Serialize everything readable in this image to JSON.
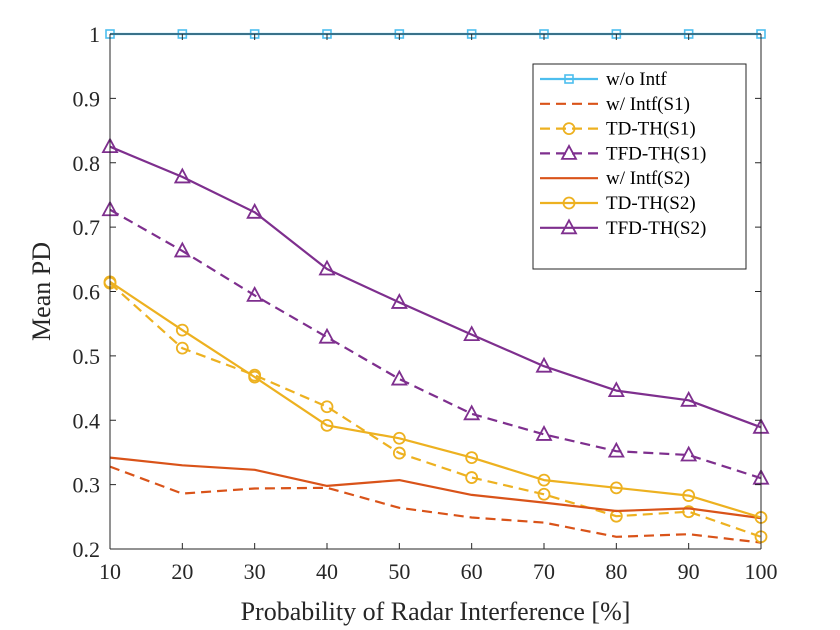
{
  "chart_data": {
    "type": "line",
    "title": "",
    "xlabel": "Probability of Radar Interference [%]",
    "ylabel": "Mean PD",
    "x": [
      10,
      20,
      30,
      40,
      50,
      60,
      70,
      80,
      90,
      100
    ],
    "xlim": [
      10,
      100
    ],
    "ylim": [
      0.2,
      1.0
    ],
    "xticks": [
      "10",
      "20",
      "30",
      "40",
      "50",
      "60",
      "70",
      "80",
      "90",
      "100"
    ],
    "yticks": [
      "0.2",
      "0.3",
      "0.4",
      "0.5",
      "0.6",
      "0.7",
      "0.8",
      "0.9",
      "1"
    ],
    "grid": false,
    "legend_position": "top-right",
    "series": [
      {
        "name": "w/o Intf",
        "color": "#4DBEEE",
        "dash": "solid",
        "marker": "square",
        "values": [
          1.0,
          1.0,
          1.0,
          1.0,
          1.0,
          1.0,
          1.0,
          1.0,
          1.0,
          1.0
        ]
      },
      {
        "name": "w/ Intf(S1)",
        "color": "#D95319",
        "dash": "dashed",
        "marker": "none",
        "values": [
          0.328,
          0.286,
          0.294,
          0.295,
          0.264,
          0.249,
          0.241,
          0.219,
          0.223,
          0.21
        ]
      },
      {
        "name": "TD-TH(S1)",
        "color": "#EDB120",
        "dash": "dashed",
        "marker": "circle",
        "values": [
          0.613,
          0.512,
          0.47,
          0.421,
          0.349,
          0.311,
          0.285,
          0.251,
          0.258,
          0.219
        ]
      },
      {
        "name": "TFD-TH(S1)",
        "color": "#7E2F8E",
        "dash": "dashed",
        "marker": "triangle",
        "values": [
          0.727,
          0.663,
          0.594,
          0.529,
          0.464,
          0.41,
          0.378,
          0.352,
          0.346,
          0.31
        ]
      },
      {
        "name": "w/ Intf(S2)",
        "color": "#D95319",
        "dash": "solid",
        "marker": "none",
        "values": [
          0.342,
          0.33,
          0.323,
          0.298,
          0.307,
          0.284,
          0.272,
          0.259,
          0.263,
          0.248
        ]
      },
      {
        "name": "TD-TH(S2)",
        "color": "#EDB120",
        "dash": "solid",
        "marker": "circle",
        "values": [
          0.615,
          0.54,
          0.467,
          0.392,
          0.372,
          0.342,
          0.307,
          0.295,
          0.283,
          0.249
        ]
      },
      {
        "name": "TFD-TH(S2)",
        "color": "#7E2F8E",
        "dash": "solid",
        "marker": "triangle",
        "values": [
          0.825,
          0.778,
          0.723,
          0.635,
          0.583,
          0.533,
          0.484,
          0.446,
          0.431,
          0.389
        ]
      }
    ]
  }
}
